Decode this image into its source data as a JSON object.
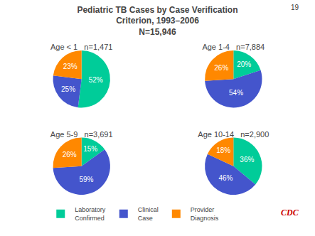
{
  "title": "Pediatric TB Cases by Case Verification\nCriterion, 1993–2006\nN=15,946",
  "annotations": [
    "19",
    "CDC"
  ],
  "legend": "bottom",
  "chart_data": [
    {
      "type": "pie",
      "title": "Age < 1   n=1,471",
      "categories": [
        "Laboratory\nConfirmed",
        "Clinical\nCase",
        "Provider\nDiagnosis"
      ],
      "values": [
        52,
        25,
        23
      ],
      "value_labels": [
        "52%",
        "25%",
        "23%"
      ],
      "colors": [
        "#00CC99",
        "#4455CC",
        "#FF8800"
      ],
      "data_labels": true
    },
    {
      "type": "pie",
      "title": "Age 1-4   n=7,884",
      "categories": [
        "Laboratory\nConfirmed",
        "Clinical\nCase",
        "Provider\nDiagnosis"
      ],
      "values": [
        20,
        54,
        26
      ],
      "value_labels": [
        "20%",
        "54%",
        "26%"
      ],
      "colors": [
        "#00CC99",
        "#4455CC",
        "#FF8800"
      ],
      "data_labels": true
    },
    {
      "type": "pie",
      "title": "Age 5-9   n=3,691",
      "categories": [
        "Laboratory\nConfirmed",
        "Clinical\nCase",
        "Provider\nDiagnosis"
      ],
      "values": [
        15,
        59,
        26
      ],
      "value_labels": [
        "15%",
        "59%",
        "26%"
      ],
      "colors": [
        "#00CC99",
        "#4455CC",
        "#FF8800"
      ],
      "data_labels": true
    },
    {
      "type": "pie",
      "title": "Age 10-14   n=2,900",
      "categories": [
        "Laboratory\nConfirmed",
        "Clinical\nCase",
        "Provider\nDiagnosis"
      ],
      "values": [
        36,
        46,
        18
      ],
      "value_labels": [
        "36%",
        "46%",
        "18%"
      ],
      "colors": [
        "#00CC99",
        "#4455CC",
        "#FF8800"
      ],
      "data_labels": true
    }
  ]
}
